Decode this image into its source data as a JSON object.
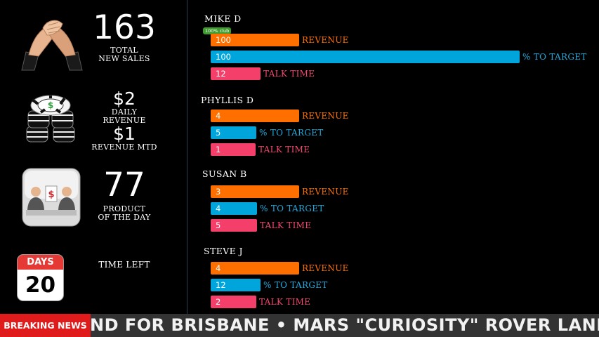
{
  "kpis": {
    "total_new_sales": {
      "value": "163",
      "label_line1": "TOTAL",
      "label_line2": "NEW SALES"
    },
    "daily_revenue": {
      "value": "$2",
      "label": "DAILY REVENUE"
    },
    "revenue_mtd": {
      "value": "$1",
      "label": "REVENUE MTD"
    },
    "product_of_day": {
      "value": "77",
      "label_line1": "PRODUCT",
      "label_line2": "OF THE DAY"
    },
    "time_left": {
      "label": "TIME LEFT",
      "calendar_header": "DAYS",
      "calendar_value": "20"
    }
  },
  "icons": {
    "kpi1": "handshake-icon",
    "kpi2": "poker-chips-icon",
    "kpi3": "business-meeting-icon",
    "kpi4": "calendar-icon"
  },
  "colors": {
    "revenue": "#ff6f00",
    "target": "#00a5dc",
    "talk_time": "#f43f6a",
    "badge": "#3d9c2d",
    "breaking": "#e01b1b"
  },
  "metric_labels": {
    "revenue": "REVENUE",
    "target": "% TO TARGET",
    "talk_time": "TALK TIME"
  },
  "reps": [
    {
      "name": "MIKE D",
      "badge": "100% club",
      "revenue": "100",
      "target": "100",
      "talk_time": "12"
    },
    {
      "name": "PHYLLIS D",
      "revenue": "4",
      "target": "5",
      "talk_time": "1"
    },
    {
      "name": "SUSAN B",
      "revenue": "3",
      "target": "4",
      "talk_time": "5"
    },
    {
      "name": "STEVE J",
      "revenue": "4",
      "target": "12",
      "talk_time": "2"
    }
  ],
  "ticker": {
    "label": "BREAKING NEWS",
    "text": "ND FOR BRISBANE  •  MARS \"CURIOSITY\" ROVER LANDS"
  }
}
